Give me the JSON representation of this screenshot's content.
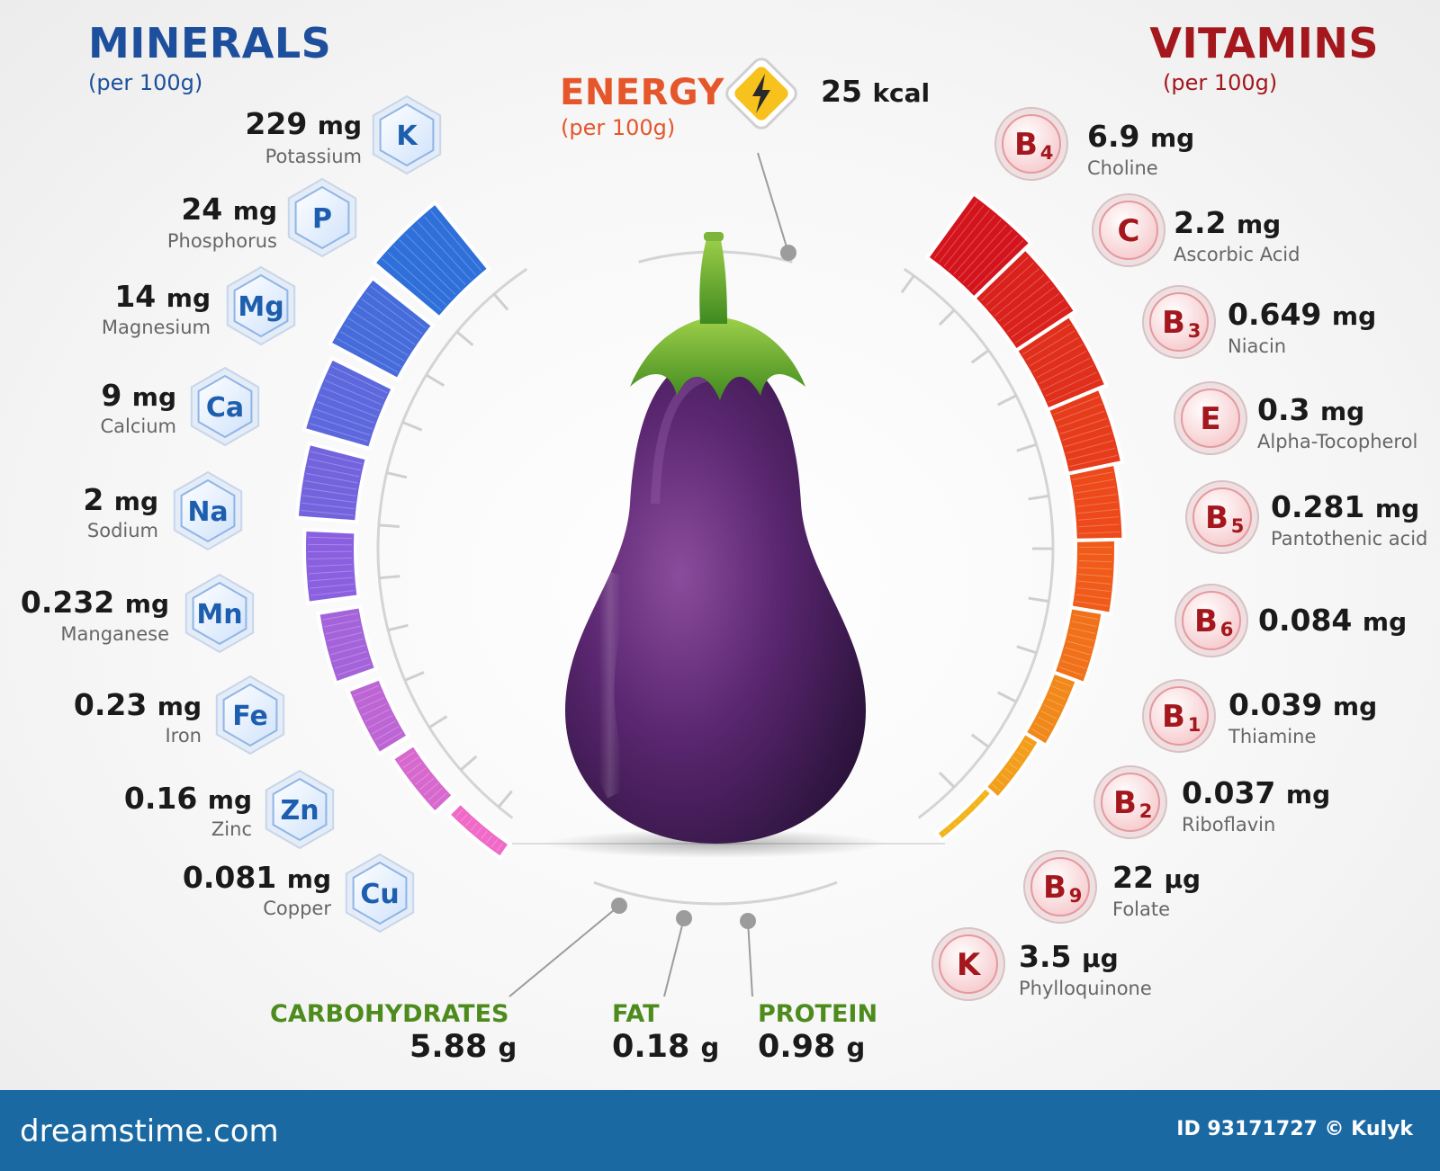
{
  "minerals": {
    "title": "MINERALS",
    "subtitle": "(per 100g)",
    "items": [
      {
        "symbol": "K",
        "amount": "229",
        "unit": "mg",
        "name": "Potassium"
      },
      {
        "symbol": "P",
        "amount": "24",
        "unit": "mg",
        "name": "Phosphorus"
      },
      {
        "symbol": "Mg",
        "amount": "14",
        "unit": "mg",
        "name": "Magnesium"
      },
      {
        "symbol": "Ca",
        "amount": "9",
        "unit": "mg",
        "name": "Calcium"
      },
      {
        "symbol": "Na",
        "amount": "2",
        "unit": "mg",
        "name": "Sodium"
      },
      {
        "symbol": "Mn",
        "amount": "0.232",
        "unit": "mg",
        "name": "Manganese"
      },
      {
        "symbol": "Fe",
        "amount": "0.23",
        "unit": "mg",
        "name": "Iron"
      },
      {
        "symbol": "Zn",
        "amount": "0.16",
        "unit": "mg",
        "name": "Zinc"
      },
      {
        "symbol": "Cu",
        "amount": "0.081",
        "unit": "mg",
        "name": "Copper"
      }
    ]
  },
  "vitamins": {
    "title": "VITAMINS",
    "subtitle": "(per 100g)",
    "items": [
      {
        "letter": "B",
        "sub": "4",
        "amount": "6.9",
        "unit": "mg",
        "name": "Choline"
      },
      {
        "letter": "C",
        "sub": "",
        "amount": "2.2",
        "unit": "mg",
        "name": "Ascorbic Acid"
      },
      {
        "letter": "B",
        "sub": "3",
        "amount": "0.649",
        "unit": "mg",
        "name": "Niacin"
      },
      {
        "letter": "E",
        "sub": "",
        "amount": "0.3",
        "unit": "mg",
        "name": "Alpha-Tocopherol"
      },
      {
        "letter": "B",
        "sub": "5",
        "amount": "0.281",
        "unit": "mg",
        "name": "Pantothenic acid"
      },
      {
        "letter": "B",
        "sub": "6",
        "amount": "0.084",
        "unit": "mg",
        "name": ""
      },
      {
        "letter": "B",
        "sub": "1",
        "amount": "0.039",
        "unit": "mg",
        "name": "Thiamine"
      },
      {
        "letter": "B",
        "sub": "2",
        "amount": "0.037",
        "unit": "mg",
        "name": "Riboflavin"
      },
      {
        "letter": "B",
        "sub": "9",
        "amount": "22",
        "unit": "µg",
        "name": "Folate"
      },
      {
        "letter": "K",
        "sub": "",
        "amount": "3.5",
        "unit": "µg",
        "name": "Phylloquinone"
      }
    ]
  },
  "energy": {
    "title": "ENERGY",
    "subtitle": "(per 100g)",
    "amount": "25",
    "unit": "kcal"
  },
  "macros": [
    {
      "label": "CARBOHYDRATES",
      "amount": "5.88",
      "unit": "g"
    },
    {
      "label": "FAT",
      "amount": "0.18",
      "unit": "g"
    },
    {
      "label": "PROTEIN",
      "amount": "0.98",
      "unit": "g"
    }
  ],
  "footer": {
    "logo": "dreamstime.com",
    "credit": "ID 93171727 © Kulyk"
  },
  "colors": {
    "minerals_title": "#1d4f9c",
    "vitamins_title": "#a3171d",
    "energy_title": "#e5562b",
    "macro_label": "#4e8b1d",
    "footer_bg": "#1a69a3",
    "eggplant": "#4a1c5a",
    "mineral_gradient": [
      "#2f6fd9",
      "#8a60e0",
      "#f06ac8"
    ],
    "vitamin_gradient": [
      "#d4141c",
      "#f0501a",
      "#f2b41a"
    ]
  },
  "icons": [
    "hexagon-badge-icon",
    "vitamin-circle-badge-icon",
    "lightning-bolt-icon",
    "eggplant-illustration"
  ]
}
